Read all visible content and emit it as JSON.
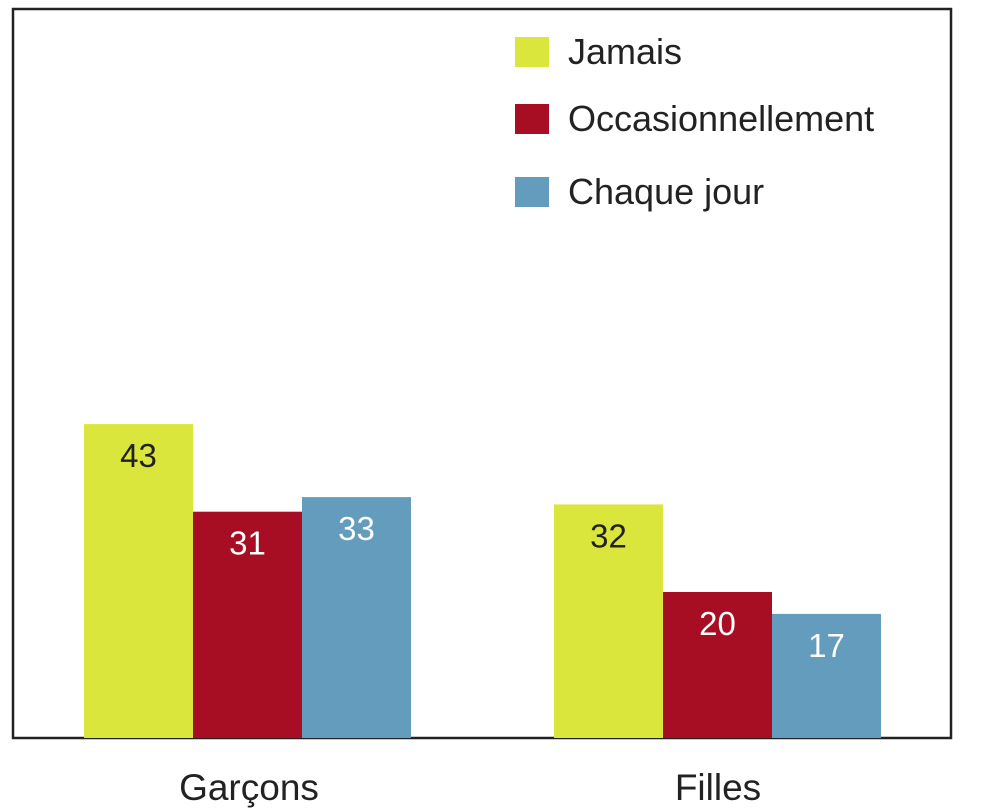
{
  "chart_data": {
    "type": "bar",
    "categories": [
      "Garçons",
      "Filles"
    ],
    "series": [
      {
        "name": "Jamais",
        "color": "#dbe63c",
        "label_color": "#222222",
        "values": [
          43,
          32
        ]
      },
      {
        "name": "Occasionnellement",
        "color": "#a80e23",
        "label_color": "#ffffff",
        "values": [
          31,
          20
        ]
      },
      {
        "name": "Chaque jour",
        "color": "#639cbd",
        "label_color": "#ffffff",
        "values": [
          33,
          17
        ]
      }
    ],
    "value_labels": [
      [
        "43",
        "32"
      ],
      [
        "31",
        "20"
      ],
      [
        "33",
        "17"
      ]
    ],
    "ylim": [
      0,
      100
    ],
    "grid": false,
    "legend_position": "top-right",
    "title": "",
    "xlabel": "",
    "ylabel": ""
  }
}
